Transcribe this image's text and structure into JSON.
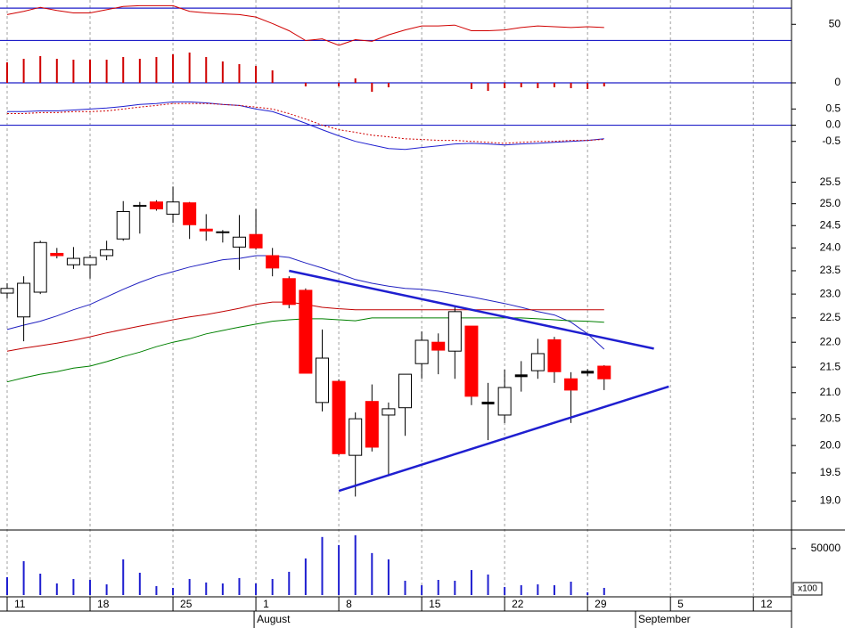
{
  "chart_data": [
    {
      "type": "line",
      "ylim": [
        25,
        80
      ],
      "yticks": [
        50
      ],
      "ref_lines": [
        30,
        70
      ],
      "ref_color": "#1f1fc8",
      "series": [
        {
          "color": "#d00000",
          "values": [
            62,
            66,
            71,
            67,
            64,
            64,
            68,
            72,
            73,
            73,
            73,
            66,
            64,
            63,
            62,
            59,
            51,
            42,
            30,
            32,
            24,
            31,
            29,
            37,
            43,
            48,
            48,
            49,
            42,
            42,
            43,
            46,
            48,
            47,
            46,
            47,
            46
          ]
        }
      ]
    },
    {
      "type": "bar",
      "ylim": [
        -13,
        43
      ],
      "yticks": [
        0
      ],
      "ref_lines": [
        0
      ],
      "ref_color": "#1f1fc8",
      "color": "#d00000",
      "values": [
        23,
        27,
        30,
        27,
        26,
        26,
        26,
        29,
        27,
        29,
        32,
        34,
        29,
        24,
        21,
        19,
        14,
        0,
        -4,
        0,
        -4,
        5,
        -10,
        -5,
        0,
        0,
        0,
        0,
        -7,
        -9,
        -6,
        -5,
        -6,
        -5,
        -6,
        -7,
        -4
      ]
    },
    {
      "type": "line",
      "ylim": [
        -1.25,
        0.95
      ],
      "yticks": [
        0.5,
        {
          "value": 0,
          "label": "0.0"
        },
        -0.5
      ],
      "ref_lines": [
        0
      ],
      "ref_color": "#1f1fc8",
      "series": [
        {
          "color": "#1f1fd0",
          "style": "solid",
          "values": [
            0.42,
            0.42,
            0.44,
            0.44,
            0.47,
            0.5,
            0.53,
            0.58,
            0.64,
            0.67,
            0.72,
            0.72,
            0.69,
            0.64,
            0.61,
            0.5,
            0.42,
            0.25,
            0.06,
            -0.14,
            -0.33,
            -0.5,
            -0.61,
            -0.72,
            -0.75,
            -0.69,
            -0.64,
            -0.58,
            -0.56,
            -0.58,
            -0.61,
            -0.58,
            -0.56,
            -0.53,
            -0.5,
            -0.47,
            -0.42
          ]
        },
        {
          "color": "#d00000",
          "style": "dashed",
          "values": [
            0.36,
            0.36,
            0.39,
            0.39,
            0.42,
            0.42,
            0.44,
            0.5,
            0.56,
            0.61,
            0.67,
            0.67,
            0.67,
            0.64,
            0.61,
            0.56,
            0.5,
            0.36,
            0.19,
            0,
            -0.14,
            -0.22,
            -0.31,
            -0.36,
            -0.42,
            -0.44,
            -0.47,
            -0.47,
            -0.5,
            -0.53,
            -0.56,
            -0.53,
            -0.5,
            -0.5,
            -0.47,
            -0.47,
            -0.44
          ]
        }
      ]
    },
    {
      "type": "candlestick",
      "log_scale": true,
      "ylim": [
        18.5,
        25.85
      ],
      "yticks": [
        25.5,
        {
          "value": 25,
          "label": "25.0"
        },
        24.5,
        {
          "value": 24,
          "label": "24.0"
        },
        23.5,
        {
          "value": 23,
          "label": "23.0"
        },
        22.5,
        {
          "value": 22,
          "label": "22.0"
        },
        21.5,
        {
          "value": 21,
          "label": "21.0"
        },
        20.5,
        {
          "value": 20,
          "label": "20.0"
        },
        19.5,
        {
          "value": 19,
          "label": "19.0"
        }
      ],
      "xlim": [
        -0.43,
        47.3
      ],
      "xticks": [
        {
          "value": 0,
          "label": "11"
        },
        {
          "value": 5,
          "label": "18"
        },
        {
          "value": 10,
          "label": "25"
        },
        {
          "value": 15,
          "label": "1"
        },
        {
          "value": 20,
          "label": "8"
        },
        {
          "value": 25,
          "label": "15"
        },
        {
          "value": 30,
          "label": "22"
        },
        {
          "value": 35,
          "label": "29"
        },
        {
          "value": 40,
          "label": "5"
        },
        {
          "value": 45,
          "label": "12"
        }
      ],
      "months": [
        {
          "value": 15,
          "label": "August"
        },
        {
          "value": 38,
          "label": "September"
        }
      ],
      "up_color": "#ffffff",
      "down_color": "#ff0000",
      "grid": true,
      "open": [
        23.02,
        22.52,
        23.04,
        23.88,
        23.63,
        23.63,
        23.83,
        24.2,
        24.94,
        25.04,
        24.76,
        25.02,
        24.42,
        24.34,
        24.02,
        24.3,
        23.83,
        23.33,
        23.08,
        20.81,
        21.22,
        19.82,
        20.83,
        20.57,
        20.71,
        21.57,
        22.0,
        21.82,
        22.33,
        20.8,
        20.57,
        21.33,
        21.43,
        22.05,
        21.27,
        21.4,
        21.52
      ],
      "high": [
        23.23,
        23.38,
        24.16,
        24.0,
        24.02,
        23.85,
        24.16,
        25.06,
        25.04,
        25.08,
        25.4,
        25.04,
        24.76,
        24.4,
        24.74,
        24.88,
        24.0,
        23.38,
        23.12,
        22.26,
        21.26,
        20.62,
        21.16,
        20.81,
        21.36,
        22.22,
        22.18,
        22.72,
        22.33,
        21.19,
        21.45,
        21.62,
        22.07,
        22.11,
        21.4,
        21.46,
        21.54
      ],
      "low": [
        22.9,
        22.02,
        23.0,
        23.77,
        23.54,
        23.33,
        23.73,
        24.16,
        24.32,
        24.84,
        24.56,
        24.2,
        24.16,
        24.12,
        23.52,
        23.96,
        23.38,
        22.7,
        21.38,
        20.64,
        19.82,
        19.08,
        19.89,
        19.47,
        20.18,
        21.27,
        21.36,
        21.27,
        20.76,
        20.1,
        20.42,
        21.02,
        21.27,
        21.19,
        20.42,
        21.33,
        21.05
      ],
      "close": [
        23.12,
        23.23,
        24.12,
        23.83,
        23.77,
        23.79,
        23.96,
        24.82,
        24.96,
        24.88,
        25.04,
        24.52,
        24.38,
        24.36,
        24.24,
        24.0,
        23.56,
        22.78,
        21.38,
        21.68,
        19.85,
        20.5,
        19.97,
        20.69,
        21.36,
        22.04,
        21.84,
        22.63,
        20.93,
        20.8,
        21.1,
        21.33,
        21.77,
        21.41,
        21.05,
        21.4,
        21.27
      ],
      "series": [
        {
          "color": "#2020c0",
          "values": [
            22.26,
            22.35,
            22.43,
            22.54,
            22.67,
            22.78,
            22.94,
            23.1,
            23.25,
            23.38,
            23.48,
            23.58,
            23.66,
            23.74,
            23.77,
            23.83,
            23.83,
            23.79,
            23.67,
            23.56,
            23.44,
            23.31,
            23.23,
            23.17,
            23.12,
            23.1,
            23.06,
            23.0,
            22.94,
            22.87,
            22.8,
            22.72,
            22.63,
            22.56,
            22.41,
            22.17,
            21.86
          ]
        },
        {
          "color": "#c00000",
          "values": [
            21.82,
            21.88,
            21.93,
            21.98,
            22.04,
            22.11,
            22.19,
            22.26,
            22.33,
            22.39,
            22.46,
            22.52,
            22.57,
            22.63,
            22.7,
            22.78,
            22.83,
            22.83,
            22.78,
            22.72,
            22.69,
            22.67,
            22.67,
            22.67,
            22.67,
            22.67,
            22.67,
            22.67,
            22.67,
            22.67,
            22.67,
            22.67,
            22.67,
            22.67,
            22.67,
            22.67,
            22.67
          ]
        },
        {
          "color": "#008000",
          "values": [
            21.21,
            21.29,
            21.36,
            21.41,
            21.48,
            21.52,
            21.61,
            21.71,
            21.8,
            21.91,
            22.0,
            22.07,
            22.17,
            22.24,
            22.31,
            22.37,
            22.43,
            22.46,
            22.48,
            22.48,
            22.46,
            22.44,
            22.5,
            22.5,
            22.5,
            22.5,
            22.5,
            22.5,
            22.5,
            22.5,
            22.5,
            22.5,
            22.48,
            22.46,
            22.44,
            22.43,
            22.41
          ]
        }
      ],
      "trendlines": [
        {
          "color": "#1f1fd0",
          "x": [
            17,
            39
          ],
          "values": [
            23.5,
            21.87
          ]
        },
        {
          "color": "#1f1fd0",
          "x": [
            20,
            39.9
          ],
          "values": [
            19.18,
            21.12
          ]
        }
      ]
    },
    {
      "type": "bar",
      "ylim": [
        0,
        70000
      ],
      "yticks": [
        50000
      ],
      "unit_label": "x100",
      "color": "#1f1fd0",
      "values": [
        19200,
        36500,
        23000,
        12500,
        17300,
        16300,
        11500,
        38400,
        24000,
        9600,
        7700,
        17300,
        13500,
        12500,
        18300,
        12500,
        17300,
        25000,
        39400,
        62500,
        53800,
        64400,
        45200,
        38400,
        15400,
        10600,
        16300,
        15400,
        26900,
        22100,
        8600,
        10600,
        11500,
        10600,
        14400,
        3000,
        7700
      ]
    }
  ]
}
